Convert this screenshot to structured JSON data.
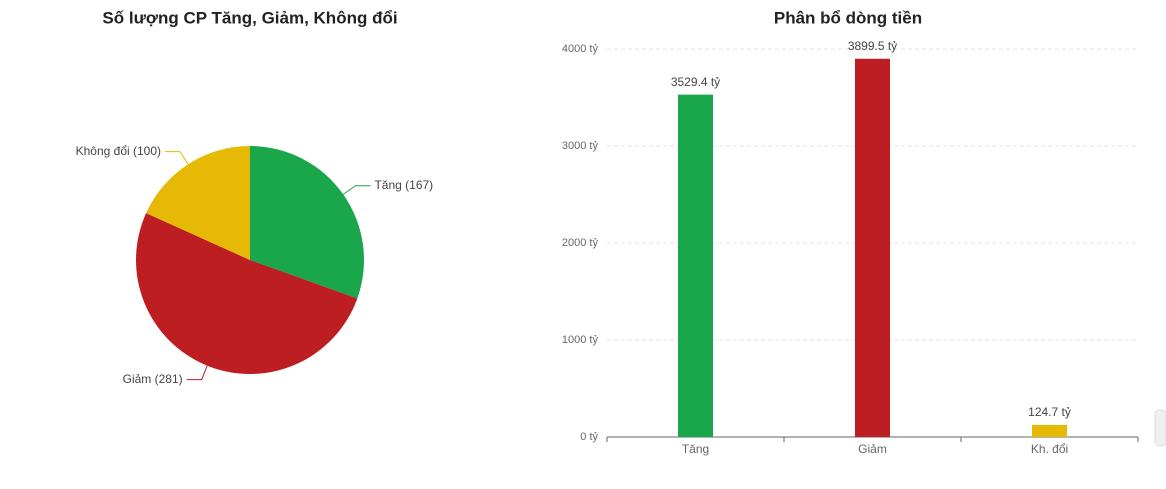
{
  "chart_data": [
    {
      "type": "pie",
      "title": "Số lượng CP Tăng, Giảm, Không đổi",
      "categories": [
        "Tăng",
        "Giảm",
        "Không đổi"
      ],
      "values": [
        167,
        281,
        100
      ],
      "value_labels": [
        "Tăng (167)",
        "Giảm (281)",
        "Không đổi (100)"
      ],
      "colors": [
        "#1aa64b",
        "#bd1e22",
        "#e5b905"
      ]
    },
    {
      "type": "bar",
      "title": "Phân bổ dòng tiền",
      "categories": [
        "Tăng",
        "Giảm",
        "Kh. đổi"
      ],
      "values": [
        3529.4,
        3899.5,
        124.7
      ],
      "value_labels": [
        "3529.4 tỷ",
        "3899.5 tỷ",
        "124.7 tỷ"
      ],
      "colors": [
        "#1aa64b",
        "#bd1e22",
        "#e5b905"
      ],
      "ylim": [
        0,
        4000
      ],
      "yticks": [
        {
          "value": 0,
          "label": "0 tỷ"
        },
        {
          "value": 1000,
          "label": "1000 tỷ"
        },
        {
          "value": 2000,
          "label": "2000 tỷ"
        },
        {
          "value": 3000,
          "label": "3000 tỷ"
        },
        {
          "value": 4000,
          "label": "4000 tỷ"
        }
      ],
      "grid": true
    }
  ]
}
